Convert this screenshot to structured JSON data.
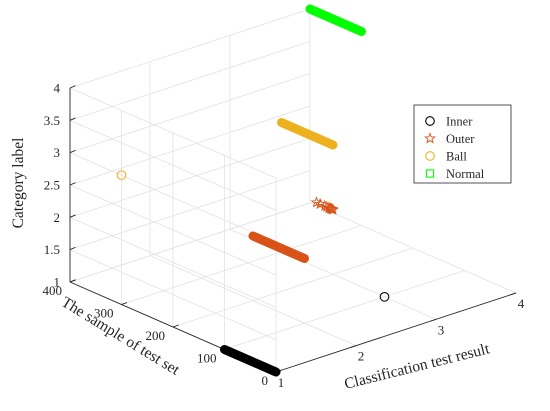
{
  "chart_data": {
    "type": "scatter3d",
    "xlabel": "Classification test result",
    "ylabel": "The sample of test set",
    "zlabel": "Category label",
    "xlim": [
      1,
      4
    ],
    "ylim": [
      0,
      400
    ],
    "zlim": [
      1,
      4
    ],
    "x_ticks": [
      "1",
      "2",
      "3",
      "4"
    ],
    "y_ticks": [
      "0",
      "100",
      "200",
      "300",
      "400"
    ],
    "z_ticks": [
      "1",
      "1.5",
      "2",
      "2.5",
      "3",
      "3.5",
      "4"
    ],
    "grid": true,
    "legend_position": "top-right",
    "series": [
      {
        "name": "Inner",
        "marker": "circle",
        "color": "#000000",
        "segments": [
          {
            "x": 1,
            "y_from": 0,
            "y_to": 100,
            "z": 1
          }
        ],
        "points": [
          {
            "x": 3,
            "y": 100,
            "z": 1
          }
        ]
      },
      {
        "name": "Outer",
        "marker": "star",
        "color": "#D95319",
        "segments": [
          {
            "x": 2,
            "y_from": 100,
            "y_to": 200,
            "z": 2
          }
        ],
        "points": [
          {
            "x": 3,
            "y": 200,
            "z": 2
          },
          {
            "x": 3,
            "y": 202,
            "z": 2
          },
          {
            "x": 3,
            "y": 204,
            "z": 2
          },
          {
            "x": 3,
            "y": 206,
            "z": 2
          },
          {
            "x": 3,
            "y": 208,
            "z": 2
          },
          {
            "x": 3,
            "y": 212,
            "z": 2
          },
          {
            "x": 3,
            "y": 216,
            "z": 2
          },
          {
            "x": 3,
            "y": 225,
            "z": 2
          },
          {
            "x": 3,
            "y": 232,
            "z": 2
          }
        ]
      },
      {
        "name": "Ball",
        "marker": "circle",
        "color": "#EDB120",
        "segments": [
          {
            "x": 3,
            "y_from": 200,
            "y_to": 300,
            "z": 3
          }
        ],
        "points": [
          {
            "x": 1,
            "y": 300,
            "z": 3
          }
        ]
      },
      {
        "name": "Normal",
        "marker": "square",
        "color": "#00FF00",
        "segments": [
          {
            "x": 4,
            "y_from": 300,
            "y_to": 400,
            "z": 4
          }
        ],
        "points": []
      }
    ]
  }
}
